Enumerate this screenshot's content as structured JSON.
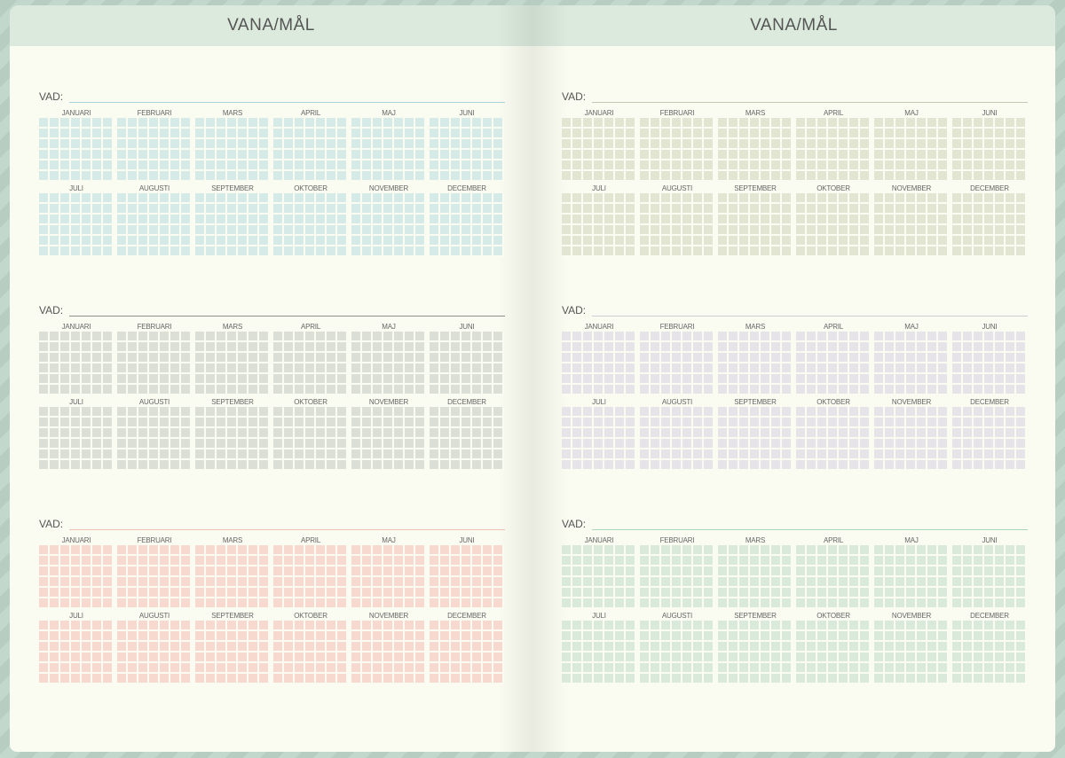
{
  "pages": [
    {
      "title": "VANA/MÅL",
      "trackers": [
        {
          "label": "VAD:",
          "grid_color": "#d6ebe7",
          "line_color": "#a9d3dc"
        },
        {
          "label": "VAD:",
          "grid_color": "#dcdfd6",
          "line_color": "#8d8f88"
        },
        {
          "label": "VAD:",
          "grid_color": "#f7d9d0",
          "line_color": "#ecc2b6"
        }
      ]
    },
    {
      "title": "VANA/MÅL",
      "trackers": [
        {
          "label": "VAD:",
          "grid_color": "#e3e5d3",
          "line_color": "#c7c9b6"
        },
        {
          "label": "VAD:",
          "grid_color": "#e6e4e8",
          "line_color": "#cfcad6"
        },
        {
          "label": "VAD:",
          "grid_color": "#d9eadb",
          "line_color": "#a9d6bc"
        }
      ]
    }
  ],
  "months": [
    "JANUARI",
    "FEBRUARI",
    "MARS",
    "APRIL",
    "MAJ",
    "JUNI",
    "JULI",
    "AUGUSTI",
    "SEPTEMBER",
    "OKTOBER",
    "NOVEMBER",
    "DECEMBER"
  ]
}
